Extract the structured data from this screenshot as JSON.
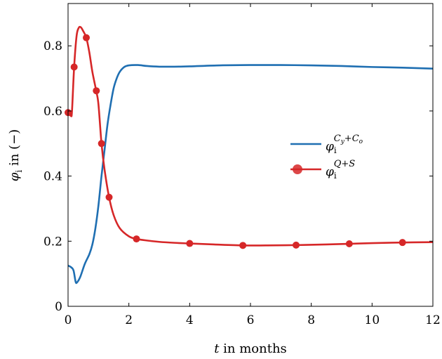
{
  "chart_data": {
    "type": "line",
    "xlabel": "t in months",
    "ylabel": "φi in (−)",
    "xlim": [
      0,
      12
    ],
    "ylim": [
      0,
      0.93
    ],
    "xticks": [
      0,
      2,
      4,
      6,
      8,
      10,
      12
    ],
    "yticks": [
      0,
      0.2,
      0.4,
      0.6,
      0.8
    ],
    "grid": false,
    "legend_position": "right",
    "series": [
      {
        "name": "φi^(Cy+Co)",
        "color": "#1f6fb2",
        "markers": false,
        "points": [
          [
            0,
            0.125
          ],
          [
            0.1,
            0.12
          ],
          [
            0.18,
            0.11
          ],
          [
            0.25,
            0.075
          ],
          [
            0.3,
            0.074
          ],
          [
            0.4,
            0.09
          ],
          [
            0.55,
            0.13
          ],
          [
            0.7,
            0.16
          ],
          [
            0.8,
            0.19
          ],
          [
            0.9,
            0.24
          ],
          [
            1.0,
            0.31
          ],
          [
            1.1,
            0.4
          ],
          [
            1.2,
            0.48
          ],
          [
            1.3,
            0.56
          ],
          [
            1.4,
            0.62
          ],
          [
            1.5,
            0.67
          ],
          [
            1.6,
            0.7
          ],
          [
            1.7,
            0.72
          ],
          [
            1.85,
            0.735
          ],
          [
            2.0,
            0.74
          ],
          [
            2.3,
            0.741
          ],
          [
            2.6,
            0.738
          ],
          [
            3.0,
            0.736
          ],
          [
            3.5,
            0.736
          ],
          [
            4.0,
            0.737
          ],
          [
            5.0,
            0.74
          ],
          [
            6.0,
            0.741
          ],
          [
            7.0,
            0.741
          ],
          [
            8.0,
            0.74
          ],
          [
            9.0,
            0.738
          ],
          [
            10.0,
            0.735
          ],
          [
            11.0,
            0.733
          ],
          [
            12.0,
            0.73
          ]
        ]
      },
      {
        "name": "φi^(Q+S)",
        "color": "#d62728",
        "markers": true,
        "points": [
          [
            0,
            0.595
          ],
          [
            0.05,
            0.59
          ],
          [
            0.1,
            0.585
          ],
          [
            0.13,
            0.6
          ],
          [
            0.2,
            0.735
          ],
          [
            0.28,
            0.83
          ],
          [
            0.35,
            0.855
          ],
          [
            0.42,
            0.857
          ],
          [
            0.5,
            0.845
          ],
          [
            0.6,
            0.825
          ],
          [
            0.7,
            0.78
          ],
          [
            0.8,
            0.72
          ],
          [
            0.93,
            0.66
          ],
          [
            1.0,
            0.62
          ],
          [
            1.1,
            0.5
          ],
          [
            1.2,
            0.42
          ],
          [
            1.35,
            0.335
          ],
          [
            1.5,
            0.28
          ],
          [
            1.7,
            0.24
          ],
          [
            2.0,
            0.215
          ],
          [
            2.25,
            0.207
          ],
          [
            2.6,
            0.202
          ],
          [
            3.0,
            0.198
          ],
          [
            3.5,
            0.195
          ],
          [
            4.0,
            0.193
          ],
          [
            4.8,
            0.19
          ],
          [
            5.75,
            0.187
          ],
          [
            6.5,
            0.187
          ],
          [
            7.5,
            0.188
          ],
          [
            8.5,
            0.19
          ],
          [
            9.25,
            0.192
          ],
          [
            10.0,
            0.194
          ],
          [
            11.0,
            0.196
          ],
          [
            12.0,
            0.197
          ]
        ],
        "marker_points": [
          [
            0,
            0.595
          ],
          [
            0.2,
            0.735
          ],
          [
            0.6,
            0.825
          ],
          [
            0.93,
            0.662
          ],
          [
            1.1,
            0.5
          ],
          [
            1.35,
            0.335
          ],
          [
            2.25,
            0.207
          ],
          [
            4.0,
            0.193
          ],
          [
            5.75,
            0.187
          ],
          [
            7.5,
            0.188
          ],
          [
            9.25,
            0.192
          ],
          [
            11.0,
            0.196
          ]
        ]
      }
    ]
  }
}
